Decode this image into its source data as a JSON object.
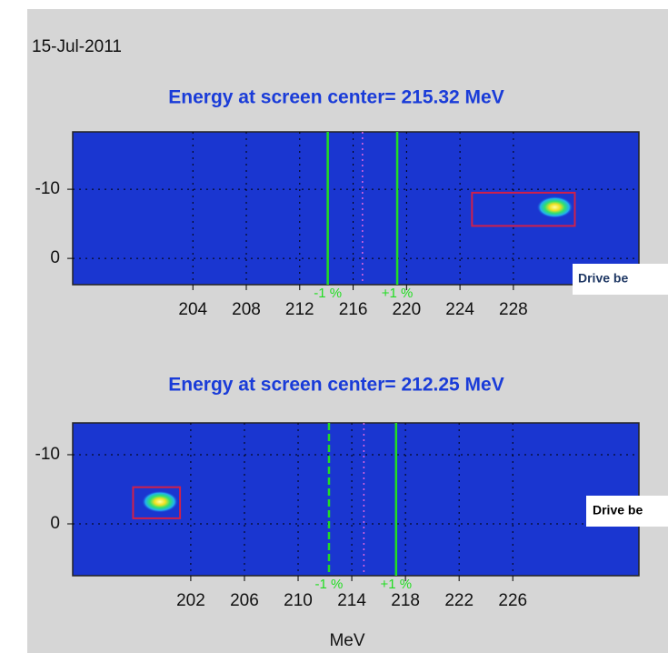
{
  "date": "15-Jul-2011",
  "chart_data": [
    {
      "type": "heatmap",
      "title": "Energy at screen center= 215.32 MeV",
      "xlim": [
        195,
        237.4
      ],
      "ylim": [
        3.8,
        -18.3
      ],
      "xticks": [
        204,
        208,
        212,
        216,
        220,
        224,
        228
      ],
      "yticks": [
        -10,
        0
      ],
      "background": "#1a36d0",
      "grid": true,
      "markers": [
        {
          "value": 214.1,
          "label": "-1 %",
          "color": "#22dd22",
          "style": "solid"
        },
        {
          "value": 216.7,
          "color": "#dd66dd",
          "style": "dotted"
        },
        {
          "value": 219.3,
          "label": "+1 %",
          "color": "#22dd22",
          "style": "solid"
        }
      ],
      "roi": {
        "x": [
          224.9,
          232.6
        ],
        "y": [
          -9.5,
          -4.7
        ],
        "color": "#d0204a"
      },
      "spot": {
        "x": 231.1,
        "y": -7.4
      },
      "annotation": "Drive be",
      "annotation_color": "#1f3864"
    },
    {
      "type": "heatmap",
      "title": "Energy at screen center= 212.25 MeV",
      "xlabel": "MeV",
      "xlim": [
        193.2,
        235.4
      ],
      "ylim": [
        7.5,
        -14.6
      ],
      "xticks": [
        202,
        206,
        210,
        214,
        218,
        222,
        226
      ],
      "yticks": [
        -10,
        0
      ],
      "background": "#1a36d0",
      "grid": true,
      "markers": [
        {
          "value": 212.3,
          "label": "-1 %",
          "color": "#22dd22",
          "style": "dashed"
        },
        {
          "value": 214.9,
          "color": "#dd66dd",
          "style": "dotted"
        },
        {
          "value": 217.3,
          "label": "+1 %",
          "color": "#22dd22",
          "style": "solid"
        }
      ],
      "roi": {
        "x": [
          197.7,
          201.2
        ],
        "y": [
          -5.3,
          -0.8
        ],
        "color": "#d0204a"
      },
      "spot": {
        "x": 199.7,
        "y": -3.2
      },
      "annotation": "Drive be",
      "annotation_color": "#000000"
    }
  ]
}
